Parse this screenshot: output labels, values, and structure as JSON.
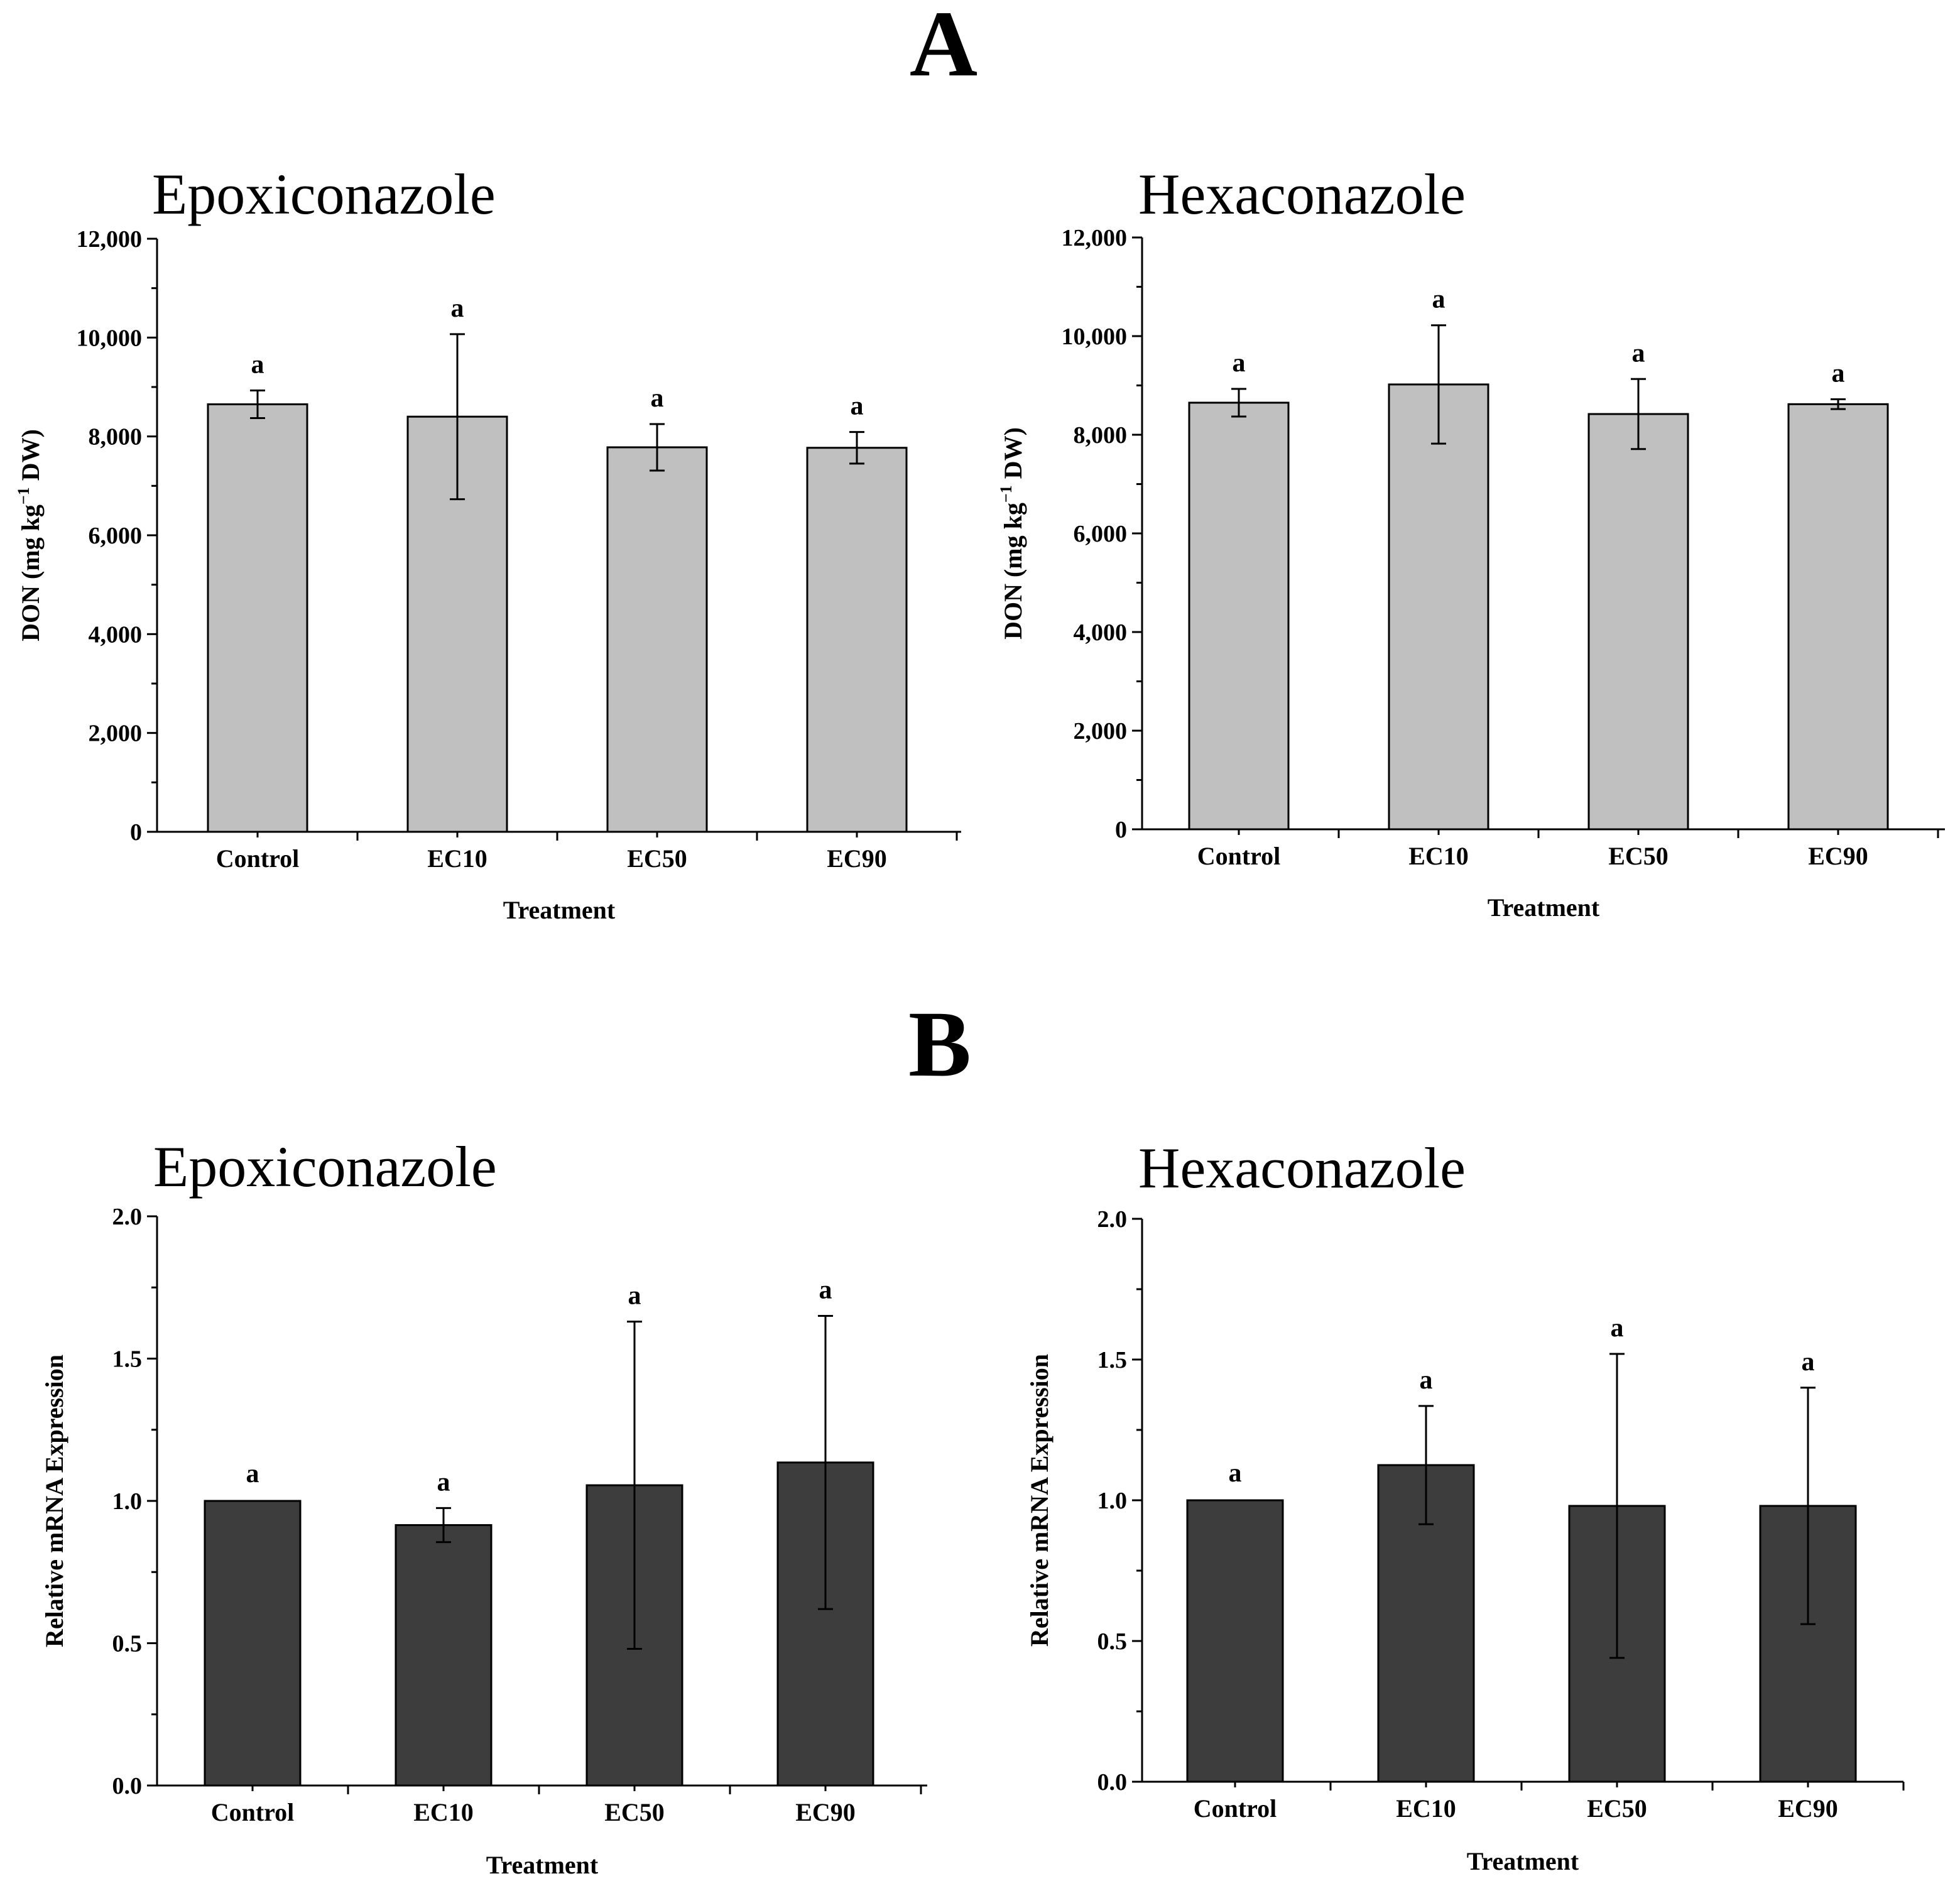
{
  "figure": {
    "panel_A_label": "A",
    "panel_B_label": "B"
  },
  "colors": {
    "light_bar": "#c0c0c0",
    "dark_bar": "#3d3d3d",
    "axis": "#000000"
  },
  "chart_data": [
    {
      "id": "A-epoxiconazole",
      "type": "bar",
      "title": "Epoxiconazole",
      "xlabel": "Treatment",
      "ylabel_main": "DON (mg kg",
      "ylabel_sup": "−1",
      "ylabel_tail": " DW)",
      "categories": [
        "Control",
        "EC10",
        "EC50",
        "EC90"
      ],
      "values": [
        8650,
        8400,
        7780,
        7770
      ],
      "errors": [
        280,
        1670,
        470,
        320
      ],
      "significance": [
        "a",
        "a",
        "a",
        "a"
      ],
      "ylim": [
        0,
        12000
      ],
      "yticks": [
        0,
        2000,
        4000,
        6000,
        8000,
        10000,
        12000
      ],
      "ytick_labels": [
        "0",
        "2,000",
        "4,000",
        "6,000",
        "8,000",
        "10,000",
        "12,000"
      ],
      "bar_color": "#c0c0c0"
    },
    {
      "id": "A-hexaconazole",
      "type": "bar",
      "title": "Hexaconazole",
      "xlabel": "Treatment",
      "ylabel_main": "DON (mg kg",
      "ylabel_sup": "−1",
      "ylabel_tail": " DW)",
      "categories": [
        "Control",
        "EC10",
        "EC50",
        "EC90"
      ],
      "values": [
        8650,
        9020,
        8420,
        8620
      ],
      "errors": [
        280,
        1200,
        710,
        100
      ],
      "significance": [
        "a",
        "a",
        "a",
        "a"
      ],
      "ylim": [
        0,
        12000
      ],
      "yticks": [
        0,
        2000,
        4000,
        6000,
        8000,
        10000,
        12000
      ],
      "ytick_labels": [
        "0",
        "2,000",
        "4,000",
        "6,000",
        "8,000",
        "10,000",
        "12,000"
      ],
      "bar_color": "#c0c0c0"
    },
    {
      "id": "B-epoxiconazole",
      "type": "bar",
      "title": "Epoxiconazole",
      "xlabel": "Treatment",
      "ylabel_main": "Relative mRNA Expression",
      "ylabel_sup": "",
      "ylabel_tail": "",
      "categories": [
        "Control",
        "EC10",
        "EC50",
        "EC90"
      ],
      "values": [
        1.0,
        0.915,
        1.055,
        1.135
      ],
      "errors": [
        0.0,
        0.06,
        0.575,
        0.515
      ],
      "significance": [
        "a",
        "a",
        "a",
        "a"
      ],
      "ylim": [
        0,
        2.0
      ],
      "yticks": [
        0,
        0.5,
        1.0,
        1.5,
        2.0
      ],
      "ytick_labels": [
        "0.0",
        "0.5",
        "1.0",
        "1.5",
        "2.0"
      ],
      "bar_color": "#3d3d3d"
    },
    {
      "id": "B-hexaconazole",
      "type": "bar",
      "title": "Hexaconazole",
      "xlabel": "Treatment",
      "ylabel_main": "Relative mRNA Expression",
      "ylabel_sup": "",
      "ylabel_tail": "",
      "categories": [
        "Control",
        "EC10",
        "EC50",
        "EC90"
      ],
      "values": [
        1.0,
        1.125,
        0.98,
        0.98
      ],
      "errors": [
        0.0,
        0.21,
        0.54,
        0.42
      ],
      "significance": [
        "a",
        "a",
        "a",
        "a"
      ],
      "ylim": [
        0,
        2.0
      ],
      "yticks": [
        0,
        0.5,
        1.0,
        1.5,
        2.0
      ],
      "ytick_labels": [
        "0.0",
        "0.5",
        "1.0",
        "1.5",
        "2.0"
      ],
      "bar_color": "#3d3d3d"
    }
  ]
}
